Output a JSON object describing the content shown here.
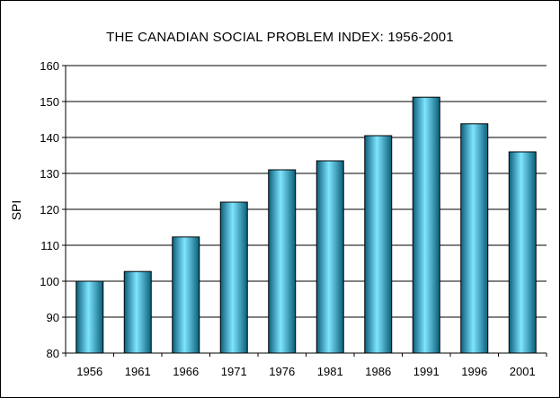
{
  "chart_data": {
    "type": "bar",
    "title": "THE CANADIAN SOCIAL PROBLEM INDEX: 1956-2001",
    "xlabel": "",
    "ylabel": "SPI",
    "categories": [
      "1956",
      "1961",
      "1966",
      "1971",
      "1976",
      "1981",
      "1986",
      "1991",
      "1996",
      "2001"
    ],
    "values": [
      100,
      102.7,
      112.3,
      122,
      131,
      133.5,
      140.5,
      151.2,
      143.8,
      136
    ],
    "ylim": [
      80,
      160
    ],
    "yticks": [
      "80",
      "90",
      "100",
      "110",
      "120",
      "130",
      "140",
      "150",
      "160"
    ],
    "grid": true,
    "legend": "none",
    "bar_color": "#1aa6d0",
    "bar_highlight": "#7fe4ff",
    "bar_shadow": "#0a5f7a"
  }
}
